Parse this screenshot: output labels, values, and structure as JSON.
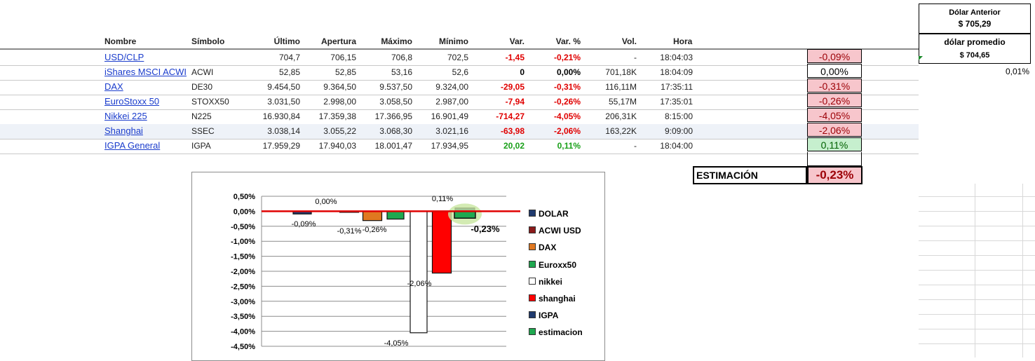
{
  "headers": {
    "nombre": "Nombre",
    "simbolo": "Símbolo",
    "ultimo": "Último",
    "apertura": "Apertura",
    "maximo": "Máximo",
    "minimo": "Mínimo",
    "var": "Var.",
    "varpct": "Var. %",
    "vol": "Vol.",
    "hora": "Hora"
  },
  "rows": [
    {
      "nombre": "USD/CLP",
      "simbolo": "",
      "ultimo": "704,7",
      "apertura": "706,15",
      "maximo": "706,8",
      "minimo": "702,5",
      "var": "-1,45",
      "varpct": "-0,21%",
      "vol": "-",
      "hora": "18:04:03",
      "estim": "-0,09%"
    },
    {
      "nombre": "iShares MSCI ACWI",
      "simbolo": "ACWI",
      "ultimo": "52,85",
      "apertura": "52,85",
      "maximo": "53,16",
      "minimo": "52,6",
      "var": "0",
      "varpct": "0,00%",
      "vol": "701,18K",
      "hora": "18:04:09",
      "estim": "0,00%"
    },
    {
      "nombre": "DAX",
      "simbolo": "DE30",
      "ultimo": "9.454,50",
      "apertura": "9.364,50",
      "maximo": "9.537,50",
      "minimo": "9.324,00",
      "var": "-29,05",
      "varpct": "-0,31%",
      "vol": "116,11M",
      "hora": "17:35:11",
      "estim": "-0,31%"
    },
    {
      "nombre": "EuroStoxx 50",
      "simbolo": "STOXX50",
      "ultimo": "3.031,50",
      "apertura": "2.998,00",
      "maximo": "3.058,50",
      "minimo": "2.987,00",
      "var": "-7,94",
      "varpct": "-0,26%",
      "vol": "55,17M",
      "hora": "17:35:01",
      "estim": "-0,26%"
    },
    {
      "nombre": "Nikkei 225",
      "simbolo": "N225",
      "ultimo": "16.930,84",
      "apertura": "17.359,38",
      "maximo": "17.366,95",
      "minimo": "16.901,49",
      "var": "-714,27",
      "varpct": "-4,05%",
      "vol": "206,31K",
      "hora": "8:15:00",
      "estim": "-4,05%"
    },
    {
      "nombre": "Shanghai",
      "simbolo": "SSEC",
      "ultimo": "3.038,14",
      "apertura": "3.055,22",
      "maximo": "3.068,30",
      "minimo": "3.021,16",
      "var": "-63,98",
      "varpct": "-2,06%",
      "vol": "163,22K",
      "hora": "9:09:00",
      "estim": "-2,06%"
    },
    {
      "nombre": "IGPA General",
      "simbolo": "IGPA",
      "ultimo": "17.959,29",
      "apertura": "17.940,03",
      "maximo": "18.001,47",
      "minimo": "17.934,95",
      "var": "20,02",
      "varpct": "0,11%",
      "vol": "-",
      "hora": "18:04:00",
      "estim": "0,11%"
    }
  ],
  "estimacion": {
    "label": "ESTIMACIÓN",
    "value": "-0,23%"
  },
  "dolar": {
    "anterior_label": "Dólar Anterior",
    "anterior_value": "$ 705,29",
    "promedio_label": "dólar promedio",
    "promedio_value": "$ 704,65",
    "diff": "0,01%"
  },
  "colors": {
    "negative": "#e00000",
    "positive": "#19a019",
    "red_fill": "#f7c6cc",
    "green_fill": "#c6efce",
    "link": "#1a3ccc"
  },
  "chart_data": {
    "type": "bar",
    "categories": [
      "DOLAR",
      "ACWI USD",
      "DAX",
      "Euroxx50",
      "nikkei",
      "shanghai",
      "IGPA",
      "estimacion"
    ],
    "values": [
      -0.09,
      0.0,
      -0.31,
      -0.26,
      -4.05,
      -2.06,
      0.11,
      -0.23
    ],
    "value_labels": [
      "-0,09%",
      "0,00%",
      "-0,31%",
      "-0,26%",
      "-4,05%",
      "-2,06%",
      "0,11%",
      "-0,23%"
    ],
    "ylim": [
      -4.5,
      0.5
    ],
    "yticks": [
      "0,50%",
      "0,00%",
      "-0,50%",
      "-1,00%",
      "-1,50%",
      "-2,00%",
      "-2,50%",
      "-3,00%",
      "-3,50%",
      "-4,00%",
      "-4,50%"
    ],
    "colors": [
      "#1f3a6e",
      "#8b1a1a",
      "#e07820",
      "#1fa850",
      "#ffffff",
      "#ff0000",
      "#1f3a6e",
      "#1fa850"
    ],
    "legend": [
      "DOLAR",
      "ACWI USD",
      "DAX",
      "Euroxx50",
      "nikkei",
      "shanghai",
      "IGPA",
      "estimacion"
    ],
    "legend_position": "right",
    "grid": true,
    "title": "",
    "xlabel": "",
    "ylabel": ""
  }
}
